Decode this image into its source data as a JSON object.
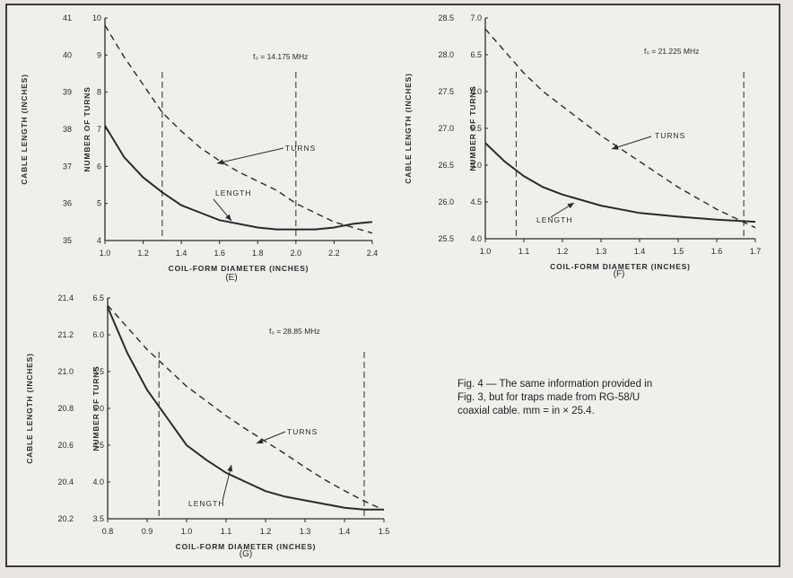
{
  "caption": {
    "line1": "Fig. 4 — The same information provided in",
    "line2": "Fig. 3, but for traps made from RG-58/U",
    "line3": "coaxial cable. mm = in × 25.4."
  },
  "chart_data": [
    {
      "type": "line",
      "panel_label": "(E)",
      "annotation": "f₀ = 14.175 MHz",
      "xlabel": "COIL-FORM DIAMETER (INCHES)",
      "ylabel_left": "CABLE LENGTH (INCHES)",
      "ylabel_right": "NUMBER OF TURNS",
      "xlim": [
        1.0,
        2.4
      ],
      "x_ticks": [
        "1.0",
        "1.2",
        "1.4",
        "1.6",
        "1.8",
        "2.0",
        "2.2",
        "2.4"
      ],
      "ylim_length": [
        35,
        41
      ],
      "length_ticks": [
        "35",
        "36",
        "37",
        "38",
        "39",
        "40",
        "41"
      ],
      "ylim_turns": [
        4,
        10
      ],
      "turns_ticks": [
        "4",
        "5",
        "6",
        "7",
        "8",
        "9",
        "10"
      ],
      "vlines": [
        1.3,
        2.0
      ],
      "series": [
        {
          "name": "LENGTH",
          "axis": "length",
          "style": "solid",
          "x": [
            1.0,
            1.1,
            1.2,
            1.3,
            1.4,
            1.5,
            1.6,
            1.7,
            1.8,
            1.9,
            2.0,
            2.1,
            2.2,
            2.3,
            2.4
          ],
          "y": [
            38.1,
            37.25,
            36.7,
            36.3,
            35.95,
            35.75,
            35.55,
            35.45,
            35.35,
            35.3,
            35.3,
            35.3,
            35.35,
            35.45,
            35.5
          ]
        },
        {
          "name": "TURNS",
          "axis": "turns",
          "style": "dashed",
          "x": [
            1.0,
            1.1,
            1.2,
            1.3,
            1.4,
            1.5,
            1.6,
            1.7,
            1.8,
            1.9,
            2.0,
            2.1,
            2.2,
            2.3,
            2.4
          ],
          "y": [
            9.8,
            8.95,
            8.2,
            7.45,
            6.95,
            6.5,
            6.15,
            5.85,
            5.6,
            5.35,
            5.0,
            4.75,
            4.5,
            4.35,
            4.2
          ]
        }
      ]
    },
    {
      "type": "line",
      "panel_label": "(F)",
      "annotation": "f₀ = 21.225 MHz",
      "xlabel": "COIL-FORM DIAMETER (INCHES)",
      "ylabel_left": "CABLE LENGTH (INCHES)",
      "ylabel_right": "NUMBER OF TURNS",
      "xlim": [
        1.0,
        1.7
      ],
      "x_ticks": [
        "1.0",
        "1.1",
        "1.2",
        "1.3",
        "1.4",
        "1.5",
        "1.6",
        "1.7"
      ],
      "ylim_length": [
        25.5,
        28.5
      ],
      "length_ticks": [
        "25.5",
        "26.0",
        "26.5",
        "27.0",
        "27.5",
        "28.0",
        "28.5"
      ],
      "ylim_turns": [
        4.0,
        7.0
      ],
      "turns_ticks": [
        "4.0",
        "4.5",
        "5.0",
        "5.5",
        "6.0",
        "6.5",
        "7.0"
      ],
      "vlines": [
        1.08,
        1.67
      ],
      "series": [
        {
          "name": "LENGTH",
          "axis": "length",
          "style": "solid",
          "x": [
            1.0,
            1.05,
            1.1,
            1.15,
            1.2,
            1.3,
            1.4,
            1.5,
            1.6,
            1.7
          ],
          "y": [
            26.8,
            26.55,
            26.35,
            26.2,
            26.1,
            25.95,
            25.85,
            25.8,
            25.76,
            25.73
          ]
        },
        {
          "name": "TURNS",
          "axis": "turns",
          "style": "dashed",
          "x": [
            1.0,
            1.05,
            1.1,
            1.15,
            1.2,
            1.3,
            1.4,
            1.5,
            1.6,
            1.7
          ],
          "y": [
            6.85,
            6.55,
            6.25,
            6.0,
            5.8,
            5.4,
            5.05,
            4.7,
            4.4,
            4.15
          ]
        }
      ]
    },
    {
      "type": "line",
      "panel_label": "(G)",
      "annotation": "f₀ = 28.85 MHz",
      "xlabel": "COIL-FORM DIAMETER (INCHES)",
      "ylabel_left": "CABLE LENGTH (INCHES)",
      "ylabel_right": "NUMBER OF TURNS",
      "xlim": [
        0.8,
        1.5
      ],
      "x_ticks": [
        "0.8",
        "0.9",
        "1.0",
        "1.1",
        "1.2",
        "1.3",
        "1.4",
        "1.5"
      ],
      "ylim_length": [
        20.2,
        21.4
      ],
      "length_ticks": [
        "20.2",
        "20.4",
        "20.6",
        "20.8",
        "21.0",
        "21.2",
        "21.4"
      ],
      "ylim_turns": [
        3.5,
        6.5
      ],
      "turns_ticks": [
        "3.5",
        "4.0",
        "4.5",
        "5.0",
        "5.5",
        "6.0",
        "6.5"
      ],
      "vlines": [
        0.93,
        1.45
      ],
      "series": [
        {
          "name": "LENGTH",
          "axis": "length",
          "style": "solid",
          "x": [
            0.8,
            0.85,
            0.9,
            0.95,
            1.0,
            1.05,
            1.1,
            1.15,
            1.2,
            1.25,
            1.3,
            1.35,
            1.4,
            1.45,
            1.5
          ],
          "y": [
            21.35,
            21.1,
            20.9,
            20.75,
            20.6,
            20.52,
            20.45,
            20.4,
            20.35,
            20.32,
            20.3,
            20.28,
            20.26,
            20.25,
            20.25
          ]
        },
        {
          "name": "TURNS",
          "axis": "turns",
          "style": "dashed",
          "x": [
            0.8,
            0.85,
            0.9,
            0.95,
            1.0,
            1.05,
            1.1,
            1.15,
            1.2,
            1.25,
            1.3,
            1.35,
            1.4,
            1.45,
            1.5
          ],
          "y": [
            6.4,
            6.1,
            5.8,
            5.55,
            5.3,
            5.1,
            4.9,
            4.72,
            4.55,
            4.38,
            4.2,
            4.03,
            3.88,
            3.74,
            3.62
          ]
        }
      ]
    }
  ]
}
